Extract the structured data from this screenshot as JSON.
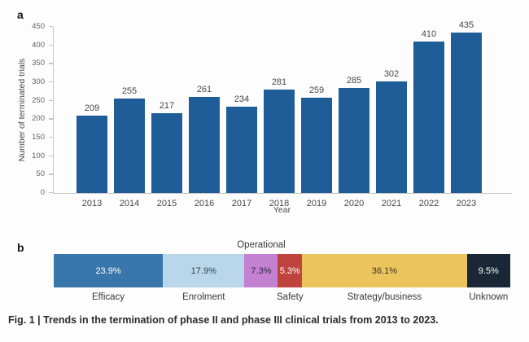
{
  "figure": {
    "panel_a_label": "a",
    "panel_b_label": "b",
    "caption": "Fig. 1 | Trends in the termination of phase II and phase III clinical trials from 2013 to 2023."
  },
  "chart_data": [
    {
      "id": "terminated-trials-by-year",
      "type": "bar",
      "title": "",
      "xlabel": "Year",
      "ylabel": "Number of terminated trials",
      "categories": [
        "2013",
        "2014",
        "2015",
        "2016",
        "2017",
        "2018",
        "2019",
        "2020",
        "2021",
        "2022",
        "2023"
      ],
      "values": [
        209,
        255,
        217,
        261,
        234,
        281,
        259,
        285,
        302,
        410,
        435
      ],
      "ylim": [
        0,
        450
      ],
      "yticks": [
        0,
        50,
        100,
        150,
        200,
        250,
        300,
        350,
        400,
        450
      ],
      "bar_color": "#1f5d98",
      "grid": false,
      "legend": "none",
      "value_labels_shown": true
    },
    {
      "id": "termination-reasons-percent",
      "type": "bar",
      "subtype": "stacked-horizontal-percent",
      "orientation": "horizontal",
      "title": "",
      "segments": [
        {
          "label": "Efficacy",
          "value": 23.9,
          "value_label": "23.9%",
          "color": "#3876ab",
          "text_color": "#ffffff",
          "label_position": "below"
        },
        {
          "label": "Enrolment",
          "value": 17.9,
          "value_label": "17.9%",
          "color": "#b9d6eb",
          "text_color": "#30414f",
          "label_position": "below"
        },
        {
          "label": "Operational",
          "value": 7.3,
          "value_label": "7.3%",
          "color": "#c480d1",
          "text_color": "#312a3d",
          "label_position": "above"
        },
        {
          "label": "Safety",
          "value": 5.3,
          "value_label": "5.3%",
          "color": "#c0443e",
          "text_color": "#ffffff",
          "label_position": "below"
        },
        {
          "label": "Strategy/business",
          "value": 36.1,
          "value_label": "36.1%",
          "color": "#ebc45e",
          "text_color": "#3b331f",
          "label_position": "below"
        },
        {
          "label": "Unknown",
          "value": 9.5,
          "value_label": "9.5%",
          "color": "#1a2736",
          "text_color": "#ffffff",
          "label_position": "below"
        }
      ]
    }
  ],
  "colors": {
    "axis_line": "#c6c6c6",
    "tick_label": "#646464",
    "value_label": "#474747",
    "category_label": "#383838",
    "caption_text": "#2b2b2b",
    "background": "#fdfdfd"
  }
}
